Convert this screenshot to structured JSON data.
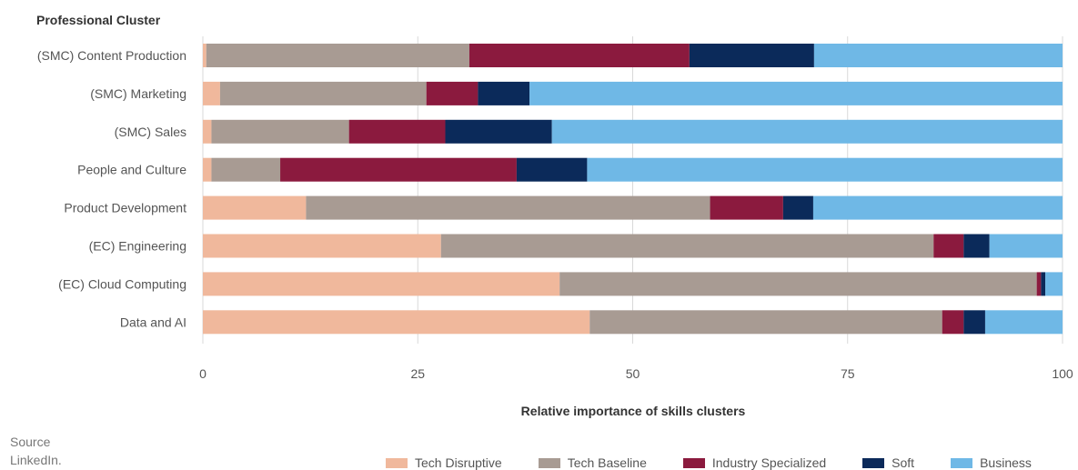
{
  "chart_data": {
    "type": "bar",
    "orientation": "horizontal",
    "stacked": true,
    "category_header": "Professional Cluster",
    "xlabel": "Relative importance of skills clusters",
    "xlim": [
      0,
      100
    ],
    "xticks": [
      0,
      25,
      50,
      75,
      100
    ],
    "grid": "vertical",
    "legend_position": "bottom",
    "categories": [
      "(SMC) Content Production",
      "(SMC) Marketing",
      "(SMC) Sales",
      "People and Culture",
      "Product Development",
      "(EC) Engineering",
      "(EC) Cloud Computing",
      "Data and AI"
    ],
    "series": [
      {
        "name": "Tech Disruptive",
        "color": "#f0b89c",
        "values": [
          0.4,
          2,
          1,
          1,
          12,
          27.7,
          41.5,
          45
        ]
      },
      {
        "name": "Tech Baseline",
        "color": "#a89b93",
        "values": [
          30.6,
          24,
          16,
          8,
          47,
          57.3,
          55.5,
          41
        ]
      },
      {
        "name": "Industry Specialized",
        "color": "#8b1a3e",
        "values": [
          25.6,
          6,
          11.2,
          27.5,
          8.5,
          3.5,
          0.5,
          2.5
        ]
      },
      {
        "name": "Soft",
        "color": "#0b2a5a",
        "values": [
          14.5,
          6,
          12.4,
          8.2,
          3.5,
          3,
          0.5,
          2.5
        ]
      },
      {
        "name": "Business",
        "color": "#6fb8e6",
        "values": [
          28.9,
          62,
          59.4,
          55.3,
          29,
          8.5,
          2,
          9
        ]
      }
    ]
  },
  "source": {
    "heading": "Source",
    "text": "LinkedIn."
  }
}
